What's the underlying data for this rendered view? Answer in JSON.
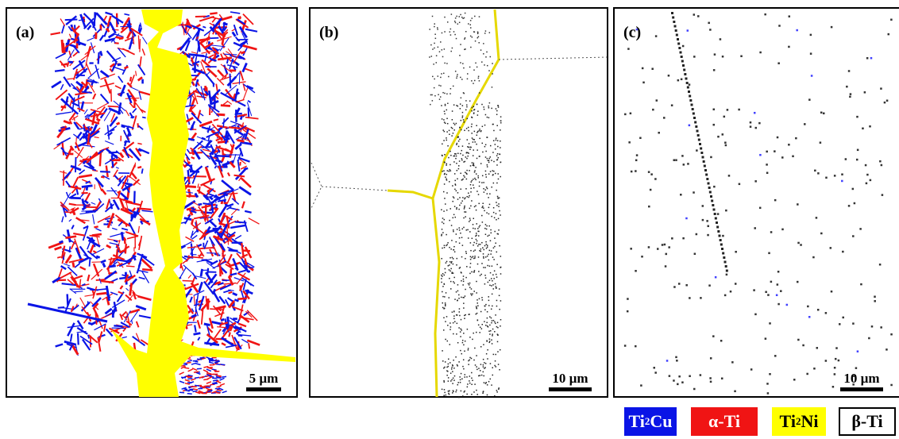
{
  "panels": [
    {
      "label": "(a)",
      "scale_bar": "5 µm"
    },
    {
      "label": "(b)",
      "scale_bar": "10 µm"
    },
    {
      "label": "(c)",
      "scale_bar": "10 µm"
    }
  ],
  "legend": [
    {
      "base": "Ti",
      "sub": "2",
      "rest": "Cu"
    },
    {
      "base": "α-Ti"
    },
    {
      "base": "Ti",
      "sub": "2",
      "rest": "Ni"
    },
    {
      "base": "β-Ti"
    }
  ]
}
